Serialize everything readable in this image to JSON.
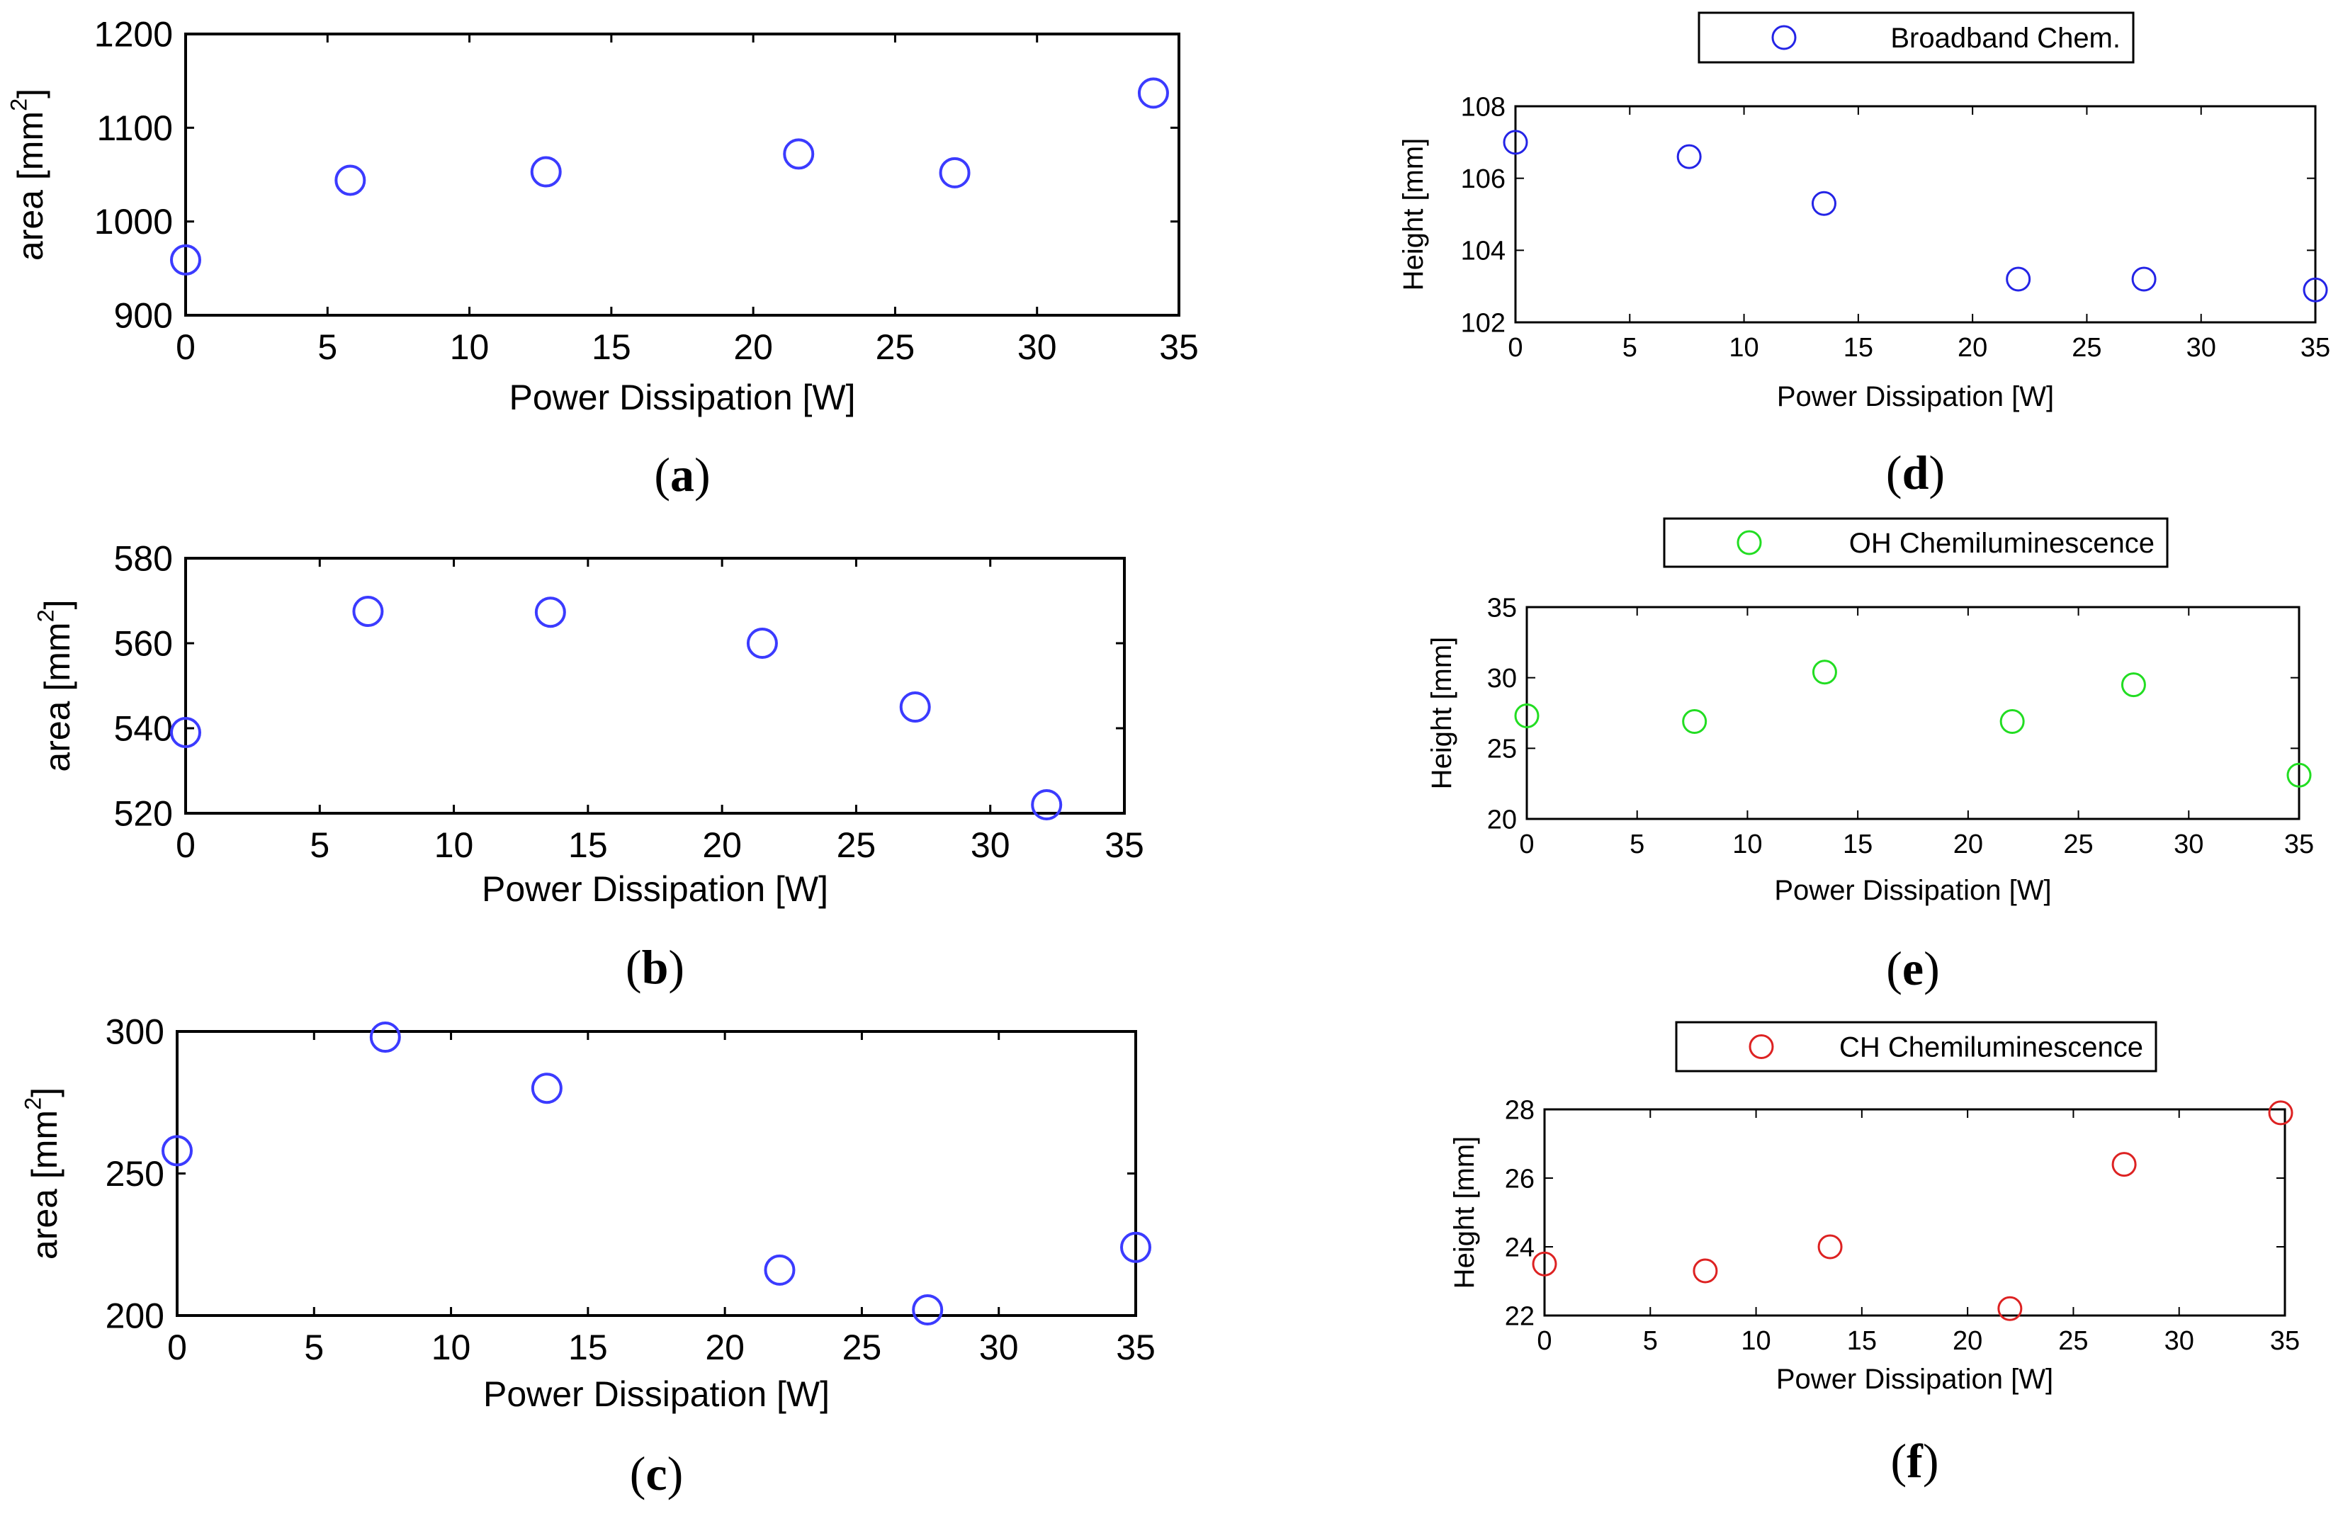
{
  "chart_data": [
    {
      "id": "a",
      "type": "scatter",
      "caption": "a",
      "xlabel": "Power Dissipation [W]",
      "ylabel_main": "area [mm",
      "ylabel_sup": "2",
      "ylabel_end": "]",
      "xlim": [
        0,
        35
      ],
      "ylim": [
        900,
        1200
      ],
      "xticks": [
        0,
        5,
        10,
        15,
        20,
        25,
        30,
        35
      ],
      "yticks": [
        900,
        1000,
        1100,
        1200
      ],
      "x": [
        0,
        5.8,
        12.7,
        21.6,
        27.1,
        34.1
      ],
      "y": [
        959,
        1044,
        1053,
        1072,
        1052,
        1137
      ],
      "color": "#3b3bff",
      "legend": null
    },
    {
      "id": "b",
      "type": "scatter",
      "caption": "b",
      "xlabel": "Power Dissipation [W]",
      "ylabel_main": "area [mm",
      "ylabel_sup": "2",
      "ylabel_end": "]",
      "xlim": [
        0,
        35
      ],
      "ylim": [
        520,
        580
      ],
      "xticks": [
        0,
        5,
        10,
        15,
        20,
        25,
        30,
        35
      ],
      "yticks": [
        520,
        540,
        560,
        580
      ],
      "x": [
        0,
        6.8,
        13.6,
        21.5,
        27.2,
        32.1
      ],
      "y": [
        539,
        567.5,
        567.3,
        560,
        545,
        522
      ],
      "color": "#3b3bff",
      "legend": null
    },
    {
      "id": "c",
      "type": "scatter",
      "caption": "c",
      "xlabel": "Power Dissipation [W]",
      "ylabel_main": "area [mm",
      "ylabel_sup": "2",
      "ylabel_end": "]",
      "xlim": [
        0,
        35
      ],
      "ylim": [
        200,
        300
      ],
      "xticks": [
        0,
        5,
        10,
        15,
        20,
        25,
        30,
        35
      ],
      "yticks": [
        200,
        250,
        300
      ],
      "x": [
        0,
        7.6,
        13.5,
        22,
        27.4,
        35
      ],
      "y": [
        258,
        298,
        280,
        216,
        202,
        224
      ],
      "color": "#3b3bff",
      "legend": null
    },
    {
      "id": "d",
      "type": "scatter",
      "caption": "d",
      "xlabel": "Power Dissipation [W]",
      "ylabel_main": "Height [mm]",
      "ylabel_sup": "",
      "ylabel_end": "",
      "xlim": [
        0,
        35
      ],
      "ylim": [
        102,
        108
      ],
      "xticks": [
        0,
        5,
        10,
        15,
        20,
        25,
        30,
        35
      ],
      "yticks": [
        102,
        104,
        106,
        108
      ],
      "x": [
        0,
        7.6,
        13.5,
        22,
        27.5,
        35
      ],
      "y": [
        107,
        106.6,
        105.3,
        103.2,
        103.2,
        102.9
      ],
      "color": "#2424e6",
      "legend": "Broadband Chem."
    },
    {
      "id": "e",
      "type": "scatter",
      "caption": "e",
      "xlabel": "Power Dissipation [W]",
      "ylabel_main": "Height [mm]",
      "ylabel_sup": "",
      "ylabel_end": "",
      "xlim": [
        0,
        35
      ],
      "ylim": [
        20,
        35
      ],
      "xticks": [
        0,
        5,
        10,
        15,
        20,
        25,
        30,
        35
      ],
      "yticks": [
        20,
        25,
        30,
        35
      ],
      "x": [
        0,
        7.6,
        13.5,
        22,
        27.5,
        35
      ],
      "y": [
        27.3,
        26.9,
        30.4,
        26.9,
        29.5,
        23.1
      ],
      "color": "#22dd22",
      "legend": "OH Chemiluminescence"
    },
    {
      "id": "f",
      "type": "scatter",
      "caption": "f",
      "xlabel": "Power Dissipation [W]",
      "ylabel_main": "Height [mm]",
      "ylabel_sup": "",
      "ylabel_end": "",
      "xlim": [
        0,
        35
      ],
      "ylim": [
        22,
        28
      ],
      "xticks": [
        0,
        5,
        10,
        15,
        20,
        25,
        30,
        35
      ],
      "yticks": [
        22,
        24,
        26,
        28
      ],
      "x": [
        0,
        7.6,
        13.5,
        22,
        27.4,
        34.8
      ],
      "y": [
        23.5,
        23.3,
        24,
        22.2,
        26.4,
        27.9
      ],
      "color": "#dd2222",
      "legend": "CH Chemiluminescence"
    }
  ]
}
